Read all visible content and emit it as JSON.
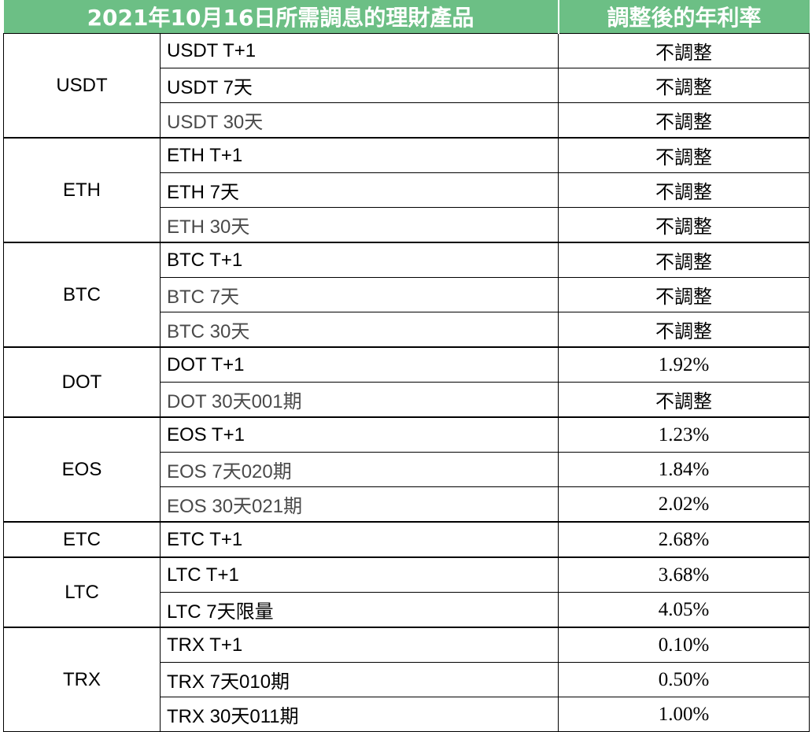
{
  "headers": {
    "product": "2021年10月16日所需調息的理財產品",
    "rate": "調整後的年利率"
  },
  "groups": [
    {
      "name": "USDT",
      "rows": [
        {
          "product": "USDT T+1",
          "rate": "不調整"
        },
        {
          "product": "USDT 7天",
          "rate": "不調整"
        },
        {
          "product": "USDT 30天",
          "rate": "不調整"
        }
      ]
    },
    {
      "name": "ETH",
      "rows": [
        {
          "product": "ETH T+1",
          "rate": "不調整"
        },
        {
          "product": "ETH 7天",
          "rate": "不調整"
        },
        {
          "product": "ETH 30天",
          "rate": "不調整"
        }
      ]
    },
    {
      "name": "BTC",
      "rows": [
        {
          "product": "BTC T+1",
          "rate": "不調整"
        },
        {
          "product": "BTC 7天",
          "rate": "不調整"
        },
        {
          "product": "BTC 30天",
          "rate": "不調整"
        }
      ]
    },
    {
      "name": "DOT",
      "rows": [
        {
          "product": "DOT T+1",
          "rate": "1.92%"
        },
        {
          "product": "DOT 30天001期",
          "rate": "不調整"
        }
      ]
    },
    {
      "name": "EOS",
      "rows": [
        {
          "product": "EOS T+1",
          "rate": "1.23%"
        },
        {
          "product": "EOS 7天020期",
          "rate": "1.84%"
        },
        {
          "product": "EOS 30天021期",
          "rate": "2.02%"
        }
      ]
    },
    {
      "name": "ETC",
      "rows": [
        {
          "product": "ETC T+1",
          "rate": "2.68%"
        }
      ]
    },
    {
      "name": "LTC",
      "rows": [
        {
          "product": "LTC T+1",
          "rate": "3.68%"
        },
        {
          "product": "LTC 7天限量",
          "rate": "4.05%"
        }
      ]
    },
    {
      "name": "TRX",
      "rows": [
        {
          "product": "TRX T+1",
          "rate": "0.10%"
        },
        {
          "product": "TRX 7天010期",
          "rate": "0.50%"
        },
        {
          "product": "TRX 30天011期",
          "rate": "1.00%"
        }
      ]
    }
  ]
}
